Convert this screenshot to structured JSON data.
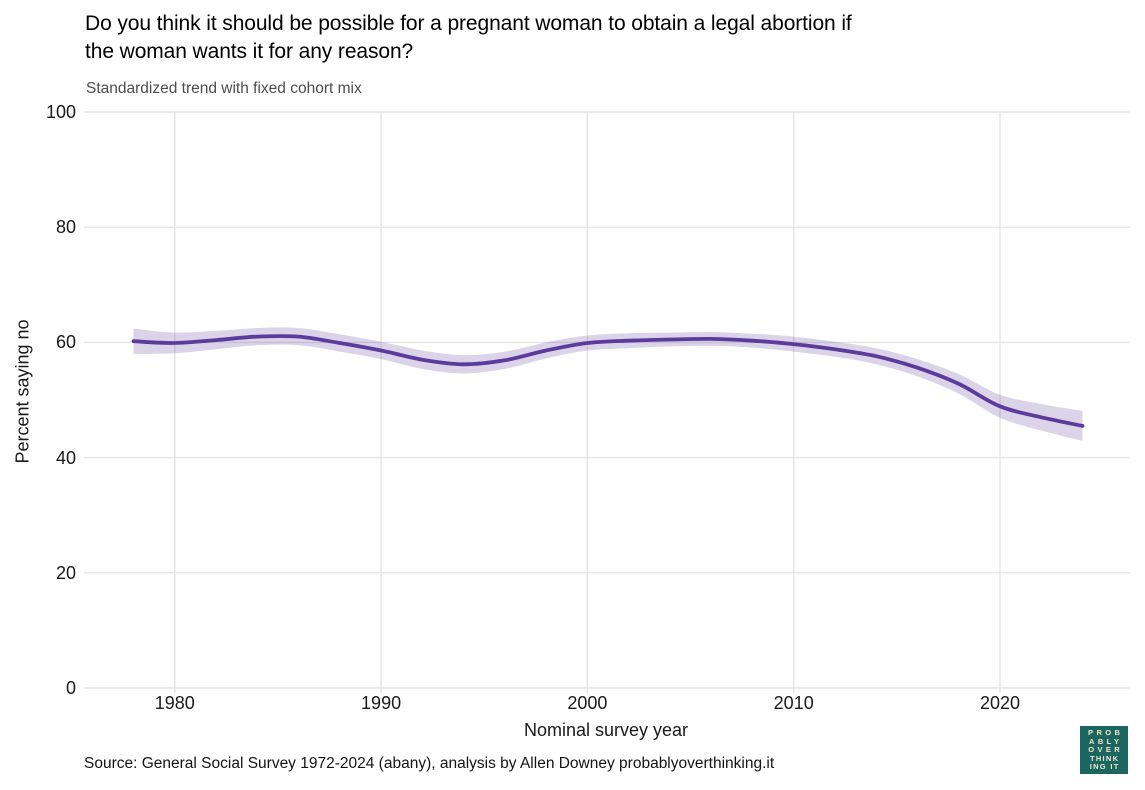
{
  "header": {
    "title_lines": [
      "Do you think it should be possible for a pregnant woman to obtain a legal abortion if",
      "the woman wants it for any reason?"
    ]
  },
  "chart_data": {
    "type": "line",
    "title": "Do you think it should be possible for a pregnant woman to obtain a legal abortion if the woman wants it for any reason?",
    "subtitle": "Standardized trend with fixed cohort mix",
    "xlabel": "Nominal survey year",
    "ylabel": "Percent saying no",
    "xlim": [
      1975.6,
      2026.3
    ],
    "ylim": [
      0,
      100
    ],
    "xticks": [
      1980,
      1990,
      2000,
      2010,
      2020
    ],
    "yticks": [
      0,
      20,
      40,
      60,
      80,
      100
    ],
    "grid": true,
    "legend": "none",
    "line_color": "#5c3b9d",
    "band_color": "rgba(92,59,157,0.22)",
    "grid_color": "#e4e4e4",
    "series": [
      {
        "name": "Percent saying no (standardized trend)",
        "x": [
          1978,
          1980,
          1982,
          1984,
          1986,
          1988,
          1990,
          1992,
          1994,
          1996,
          1998,
          2000,
          2002,
          2004,
          2006,
          2008,
          2010,
          2012,
          2014,
          2016,
          2018,
          2020,
          2022,
          2024
        ],
        "y": [
          60.2,
          59.9,
          60.4,
          61.0,
          61.0,
          59.9,
          58.6,
          57.0,
          56.2,
          56.9,
          58.6,
          59.9,
          60.3,
          60.5,
          60.6,
          60.3,
          59.7,
          58.8,
          57.6,
          55.6,
          52.8,
          48.9,
          47.0,
          45.5
        ],
        "ci_halfwidth": [
          2.2,
          1.8,
          1.6,
          1.5,
          1.5,
          1.5,
          1.5,
          1.6,
          1.6,
          1.5,
          1.4,
          1.3,
          1.3,
          1.2,
          1.2,
          1.2,
          1.3,
          1.3,
          1.4,
          1.5,
          1.7,
          2.0,
          2.3,
          2.6
        ]
      }
    ]
  },
  "footer": {
    "source": "Source: General Social Survey 1972-2024 (abany), analysis by Allen Downey probablyoverthinking.it",
    "logo": {
      "lines": [
        "PROB",
        "ABLY",
        "OVER",
        "THINK",
        "ING IT"
      ],
      "bg_color": "#1b675f",
      "text_color": "#f0e8cc"
    }
  }
}
